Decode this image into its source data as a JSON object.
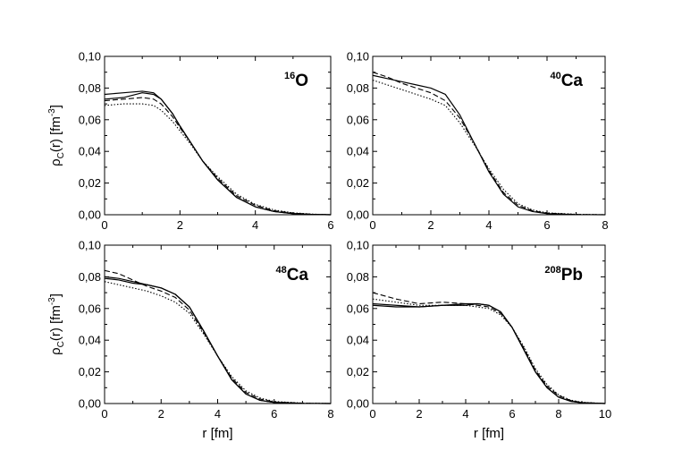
{
  "chart_data": [
    {
      "type": "line",
      "annotation": {
        "mass": "16",
        "symbol": "O"
      },
      "xlim": [
        0,
        6
      ],
      "ylim": [
        0,
        0.1
      ],
      "xticks": [
        "0",
        "2",
        "4",
        "6"
      ],
      "yticks": [
        "0,00",
        "0,02",
        "0,04",
        "0,06",
        "0,08",
        "0,10"
      ],
      "xlabel": "",
      "ylabel": "ρC(r) [fm-3]",
      "series": [
        {
          "style": "solid",
          "x": [
            0,
            0.5,
            1.0,
            1.3,
            1.5,
            1.8,
            2.0,
            2.3,
            2.6,
            3.0,
            3.5,
            4.0,
            4.5,
            5.0,
            5.5,
            6.0
          ],
          "y": [
            0.076,
            0.077,
            0.078,
            0.077,
            0.073,
            0.064,
            0.056,
            0.045,
            0.034,
            0.022,
            0.011,
            0.005,
            0.002,
            0.0007,
            0.0002,
            0.0
          ]
        },
        {
          "style": "solid",
          "x": [
            0,
            0.5,
            1.0,
            1.3,
            1.5,
            1.8,
            2.0,
            2.3,
            2.6,
            3.0,
            3.5,
            4.0,
            4.5,
            5.0,
            5.5,
            6.0
          ],
          "y": [
            0.073,
            0.074,
            0.077,
            0.076,
            0.073,
            0.064,
            0.056,
            0.045,
            0.034,
            0.022,
            0.011,
            0.005,
            0.002,
            0.0007,
            0.0002,
            0.0
          ]
        },
        {
          "style": "dashed",
          "x": [
            0,
            0.5,
            1.0,
            1.3,
            1.5,
            1.8,
            2.0,
            2.3,
            2.6,
            3.0,
            3.5,
            4.0,
            4.5,
            5.0,
            5.5,
            6.0
          ],
          "y": [
            0.072,
            0.073,
            0.074,
            0.073,
            0.07,
            0.062,
            0.055,
            0.045,
            0.034,
            0.023,
            0.012,
            0.006,
            0.0025,
            0.001,
            0.0003,
            0.0
          ]
        },
        {
          "style": "dotted",
          "x": [
            0,
            0.5,
            1.0,
            1.3,
            1.5,
            1.8,
            2.0,
            2.3,
            2.6,
            3.0,
            3.5,
            4.0,
            4.5,
            5.0,
            5.5,
            6.0
          ],
          "y": [
            0.069,
            0.07,
            0.07,
            0.069,
            0.066,
            0.059,
            0.053,
            0.044,
            0.034,
            0.024,
            0.013,
            0.0065,
            0.003,
            0.0012,
            0.0004,
            0.0
          ]
        }
      ]
    },
    {
      "type": "line",
      "annotation": {
        "mass": "40",
        "symbol": "Ca"
      },
      "xlim": [
        0,
        8
      ],
      "ylim": [
        0,
        0.1
      ],
      "xticks": [
        "0",
        "2",
        "4",
        "6",
        "8"
      ],
      "yticks": [
        "0,00",
        "0,02",
        "0,04",
        "0,06",
        "0,08",
        "0,10"
      ],
      "xlabel": "",
      "ylabel": "",
      "series": [
        {
          "style": "solid",
          "x": [
            0,
            0.5,
            1.0,
            1.5,
            2.0,
            2.5,
            3.0,
            3.5,
            4.0,
            4.5,
            5.0,
            5.5,
            6.0,
            7.0,
            8.0
          ],
          "y": [
            0.088,
            0.086,
            0.084,
            0.082,
            0.08,
            0.076,
            0.063,
            0.045,
            0.027,
            0.013,
            0.005,
            0.002,
            0.0007,
            0.0001,
            0.0
          ]
        },
        {
          "style": "dashed",
          "x": [
            0,
            0.5,
            1.0,
            1.5,
            2.0,
            2.5,
            3.0,
            3.5,
            4.0,
            4.5,
            5.0,
            5.5,
            6.0,
            7.0,
            8.0
          ],
          "y": [
            0.09,
            0.087,
            0.083,
            0.08,
            0.077,
            0.072,
            0.061,
            0.045,
            0.028,
            0.014,
            0.006,
            0.0025,
            0.001,
            0.0002,
            0.0
          ]
        },
        {
          "style": "dotted",
          "x": [
            0,
            0.5,
            1.0,
            1.5,
            2.0,
            2.5,
            3.0,
            3.5,
            4.0,
            4.5,
            5.0,
            5.5,
            6.0,
            7.0,
            8.0
          ],
          "y": [
            0.085,
            0.082,
            0.079,
            0.076,
            0.073,
            0.069,
            0.058,
            0.044,
            0.029,
            0.016,
            0.007,
            0.003,
            0.0012,
            0.0003,
            0.0
          ]
        }
      ]
    },
    {
      "type": "line",
      "annotation": {
        "mass": "48",
        "symbol": "Ca"
      },
      "xlim": [
        0,
        8
      ],
      "ylim": [
        0,
        0.1
      ],
      "xticks": [
        "0",
        "2",
        "4",
        "6",
        "8"
      ],
      "yticks": [
        "0,00",
        "0,02",
        "0,04",
        "0,06",
        "0,08",
        "0,10"
      ],
      "xlabel": "r [fm]",
      "ylabel": "ρC(r) [fm-3]",
      "series": [
        {
          "style": "solid",
          "x": [
            0,
            0.5,
            1.0,
            1.5,
            2.0,
            2.5,
            3.0,
            3.5,
            4.0,
            4.5,
            5.0,
            5.5,
            6.0,
            7.0,
            8.0
          ],
          "y": [
            0.079,
            0.078,
            0.076,
            0.075,
            0.073,
            0.069,
            0.061,
            0.046,
            0.03,
            0.015,
            0.006,
            0.002,
            0.0007,
            0.0001,
            0.0
          ]
        },
        {
          "style": "solid",
          "x": [
            0,
            0.5,
            1.0,
            1.5,
            2.0,
            2.5,
            3.0,
            3.5,
            4.0,
            4.5,
            5.0,
            5.5,
            6.0,
            7.0,
            8.0
          ],
          "y": [
            0.08,
            0.079,
            0.077,
            0.075,
            0.073,
            0.069,
            0.061,
            0.046,
            0.03,
            0.015,
            0.006,
            0.002,
            0.0007,
            0.0001,
            0.0
          ]
        },
        {
          "style": "dashed",
          "x": [
            0,
            0.5,
            1.0,
            1.5,
            2.0,
            2.5,
            3.0,
            3.5,
            4.0,
            4.5,
            5.0,
            5.5,
            6.0,
            7.0,
            8.0
          ],
          "y": [
            0.084,
            0.082,
            0.078,
            0.074,
            0.071,
            0.067,
            0.059,
            0.045,
            0.03,
            0.016,
            0.007,
            0.0028,
            0.001,
            0.0002,
            0.0
          ]
        },
        {
          "style": "dotted",
          "x": [
            0,
            0.5,
            1.0,
            1.5,
            2.0,
            2.5,
            3.0,
            3.5,
            4.0,
            4.5,
            5.0,
            5.5,
            6.0,
            7.0,
            8.0
          ],
          "y": [
            0.077,
            0.075,
            0.073,
            0.071,
            0.068,
            0.064,
            0.057,
            0.044,
            0.03,
            0.017,
            0.008,
            0.0035,
            0.0013,
            0.0003,
            0.0
          ]
        }
      ]
    },
    {
      "type": "line",
      "annotation": {
        "mass": "208",
        "symbol": "Pb"
      },
      "xlim": [
        0,
        10
      ],
      "ylim": [
        0,
        0.1
      ],
      "xticks": [
        "0",
        "2",
        "4",
        "6",
        "8",
        "10"
      ],
      "yticks": [
        "0,00",
        "0,02",
        "0,04",
        "0,06",
        "0,08",
        "0,10"
      ],
      "xlabel": "r [fm]",
      "ylabel": "",
      "series": [
        {
          "style": "solid",
          "x": [
            0,
            1.0,
            2.0,
            3.0,
            4.0,
            4.5,
            5.0,
            5.5,
            6.0,
            6.5,
            7.0,
            7.5,
            8.0,
            8.5,
            9.0,
            10.0
          ],
          "y": [
            0.062,
            0.061,
            0.061,
            0.062,
            0.063,
            0.063,
            0.062,
            0.058,
            0.048,
            0.034,
            0.02,
            0.01,
            0.004,
            0.0015,
            0.0005,
            0.0
          ]
        },
        {
          "style": "solid",
          "x": [
            0,
            1.0,
            2.0,
            3.0,
            4.0,
            4.5,
            5.0,
            5.5,
            6.0,
            6.5,
            7.0,
            7.5,
            8.0,
            8.5,
            9.0,
            10.0
          ],
          "y": [
            0.063,
            0.062,
            0.061,
            0.062,
            0.062,
            0.063,
            0.062,
            0.058,
            0.048,
            0.034,
            0.02,
            0.01,
            0.004,
            0.0015,
            0.0005,
            0.0
          ]
        },
        {
          "style": "dashed",
          "x": [
            0,
            1.0,
            2.0,
            3.0,
            4.0,
            4.5,
            5.0,
            5.5,
            6.0,
            6.5,
            7.0,
            7.5,
            8.0,
            8.5,
            9.0,
            10.0
          ],
          "y": [
            0.07,
            0.066,
            0.063,
            0.064,
            0.063,
            0.062,
            0.061,
            0.057,
            0.048,
            0.035,
            0.021,
            0.011,
            0.005,
            0.002,
            0.0006,
            0.0
          ]
        },
        {
          "style": "dotted",
          "x": [
            0,
            1.0,
            2.0,
            3.0,
            4.0,
            4.5,
            5.0,
            5.5,
            6.0,
            6.5,
            7.0,
            7.5,
            8.0,
            8.5,
            9.0,
            10.0
          ],
          "y": [
            0.066,
            0.064,
            0.062,
            0.062,
            0.062,
            0.061,
            0.06,
            0.056,
            0.048,
            0.036,
            0.022,
            0.012,
            0.0055,
            0.0022,
            0.0008,
            0.0
          ]
        }
      ]
    }
  ]
}
